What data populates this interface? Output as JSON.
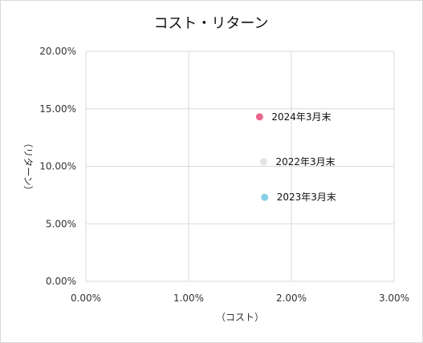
{
  "chart_data": {
    "type": "scatter",
    "title": "コスト・リターン",
    "xlabel": "（コスト）",
    "ylabel": "（リターン）",
    "xlim": [
      0,
      0.03
    ],
    "ylim": [
      0,
      0.2
    ],
    "x_ticks": [
      "0.00%",
      "1.00%",
      "2.00%",
      "3.00%"
    ],
    "y_ticks": [
      "0.00%",
      "5.00%",
      "10.00%",
      "15.00%",
      "20.00%"
    ],
    "grid": true,
    "points": [
      {
        "label": "2024年3月末",
        "x": 0.0169,
        "y": 0.143,
        "color": "#e8678a"
      },
      {
        "label": "2022年3月末",
        "x": 0.0173,
        "y": 0.104,
        "color": "#e3e3e3"
      },
      {
        "label": "2023年3月末",
        "x": 0.0174,
        "y": 0.073,
        "color": "#86cfe6"
      }
    ]
  }
}
